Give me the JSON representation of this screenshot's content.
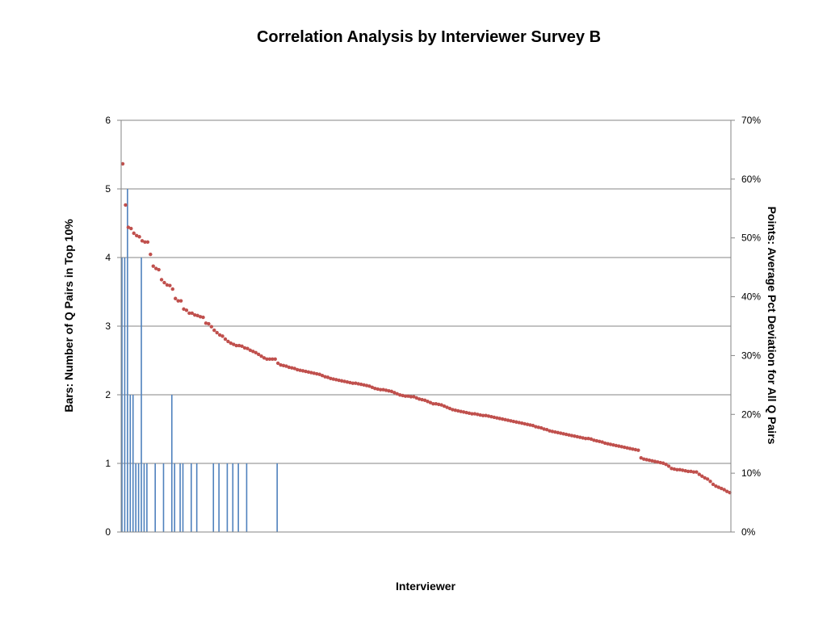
{
  "chart_data": {
    "type": "bar+scatter",
    "title": "Correlation Analysis by Interviewer Survey B",
    "xlabel": "Interviewer",
    "ylabel_left": "Bars: Number of Q Pairs in Top 10%",
    "ylabel_right": "Points: Average Pct Deviation for All Q Pairs",
    "ylim_left": [
      0,
      6
    ],
    "ylim_right": [
      0,
      70
    ],
    "left_ticks": [
      "0",
      "1",
      "2",
      "3",
      "4",
      "5",
      "6"
    ],
    "right_ticks": [
      "0%",
      "10%",
      "20%",
      "30%",
      "40%",
      "50%",
      "60%",
      "70%"
    ],
    "grid": true,
    "colors": {
      "bars": "#4F81BD",
      "points": "#C0504D",
      "grid": "#868686"
    },
    "bars": {
      "values": [
        4,
        4,
        5,
        2,
        2,
        1,
        1,
        4,
        1,
        1,
        0,
        0,
        1,
        0,
        0,
        1,
        0,
        0,
        2,
        1,
        0,
        1,
        1,
        0,
        0,
        1,
        0,
        1,
        0,
        0,
        0,
        0,
        0,
        1,
        0,
        1,
        0,
        0,
        1,
        0,
        1,
        0,
        1,
        0,
        0,
        1,
        0,
        0,
        0,
        0,
        0,
        0,
        0,
        0,
        0,
        0,
        1,
        0,
        0,
        0,
        0,
        0,
        0,
        0,
        0,
        0,
        0,
        0,
        0,
        0,
        0,
        0,
        0,
        0,
        0,
        0,
        0,
        0,
        0,
        0,
        0,
        0,
        0,
        0,
        0,
        0,
        0,
        0,
        0,
        0,
        0,
        0,
        0,
        0,
        0,
        0,
        0,
        0,
        0,
        0,
        0,
        0,
        0,
        0,
        0,
        0,
        0,
        0,
        0,
        0,
        0,
        0,
        0,
        0,
        0,
        0,
        0,
        0,
        0,
        0,
        0,
        0,
        0,
        0,
        0,
        0,
        0,
        0,
        0,
        0,
        0,
        0,
        0,
        0,
        0,
        0,
        0,
        0,
        0,
        0,
        0,
        0,
        0,
        0,
        0,
        0,
        0,
        0,
        0,
        0,
        0,
        0,
        0,
        0,
        0,
        0,
        0,
        0,
        0,
        0,
        0,
        0,
        0,
        0,
        0,
        0,
        0,
        0,
        0,
        0,
        0,
        0,
        0,
        0,
        0,
        0,
        0,
        0,
        0,
        0,
        0,
        0,
        0,
        0,
        0,
        0,
        0,
        0,
        0,
        0,
        0,
        0,
        0,
        0,
        0,
        0,
        0,
        0,
        0,
        0,
        0,
        0,
        0,
        0,
        0,
        0,
        0,
        0,
        0,
        0,
        0,
        0,
        0,
        0,
        0,
        0,
        0,
        0,
        0,
        0
      ]
    },
    "points": {
      "values": [
        62.6,
        55.6,
        51.8,
        51.6,
        50.8,
        50.4,
        50.2,
        49.5,
        49.3,
        49.3,
        47.2,
        45.2,
        44.8,
        44.6,
        42.9,
        42.4,
        42.0,
        41.9,
        41.3,
        39.7,
        39.3,
        39.3,
        37.9,
        37.7,
        37.2,
        37.2,
        36.9,
        36.8,
        36.6,
        36.5,
        35.5,
        35.4,
        34.9,
        34.3,
        33.9,
        33.5,
        33.3,
        32.8,
        32.4,
        32.1,
        31.9,
        31.7,
        31.7,
        31.6,
        31.3,
        31.2,
        30.9,
        30.7,
        30.5,
        30.2,
        29.9,
        29.6,
        29.4,
        29.4,
        29.4,
        29.4,
        28.7,
        28.4,
        28.3,
        28.2,
        28.0,
        27.9,
        27.8,
        27.6,
        27.5,
        27.4,
        27.3,
        27.2,
        27.1,
        27.0,
        26.9,
        26.8,
        26.6,
        26.4,
        26.3,
        26.1,
        26.0,
        25.9,
        25.8,
        25.7,
        25.6,
        25.5,
        25.4,
        25.3,
        25.3,
        25.2,
        25.1,
        25.0,
        24.9,
        24.8,
        24.6,
        24.4,
        24.3,
        24.2,
        24.2,
        24.1,
        24.0,
        23.9,
        23.7,
        23.5,
        23.3,
        23.2,
        23.1,
        23.1,
        23.0,
        23.0,
        22.8,
        22.6,
        22.5,
        22.4,
        22.2,
        22.0,
        21.8,
        21.8,
        21.7,
        21.6,
        21.4,
        21.2,
        21.0,
        20.8,
        20.7,
        20.6,
        20.5,
        20.4,
        20.3,
        20.2,
        20.1,
        20.1,
        20.0,
        19.9,
        19.8,
        19.8,
        19.7,
        19.6,
        19.5,
        19.4,
        19.3,
        19.2,
        19.1,
        19.0,
        18.9,
        18.8,
        18.7,
        18.6,
        18.5,
        18.4,
        18.3,
        18.2,
        18.1,
        17.9,
        17.8,
        17.7,
        17.5,
        17.4,
        17.2,
        17.1,
        17.0,
        16.9,
        16.8,
        16.7,
        16.6,
        16.5,
        16.4,
        16.3,
        16.2,
        16.1,
        16.0,
        15.9,
        15.9,
        15.8,
        15.6,
        15.5,
        15.4,
        15.3,
        15.1,
        15.0,
        14.9,
        14.8,
        14.7,
        14.6,
        14.5,
        14.4,
        14.3,
        14.2,
        14.1,
        14.0,
        13.9,
        12.6,
        12.4,
        12.3,
        12.2,
        12.1,
        12.0,
        11.9,
        11.8,
        11.7,
        11.5,
        11.2,
        10.8,
        10.7,
        10.6,
        10.6,
        10.5,
        10.4,
        10.3,
        10.3,
        10.2,
        10.2,
        9.8,
        9.5,
        9.2,
        9.0,
        8.6,
        8.1,
        7.8,
        7.6,
        7.4,
        7.2,
        6.9,
        6.7
      ]
    }
  }
}
